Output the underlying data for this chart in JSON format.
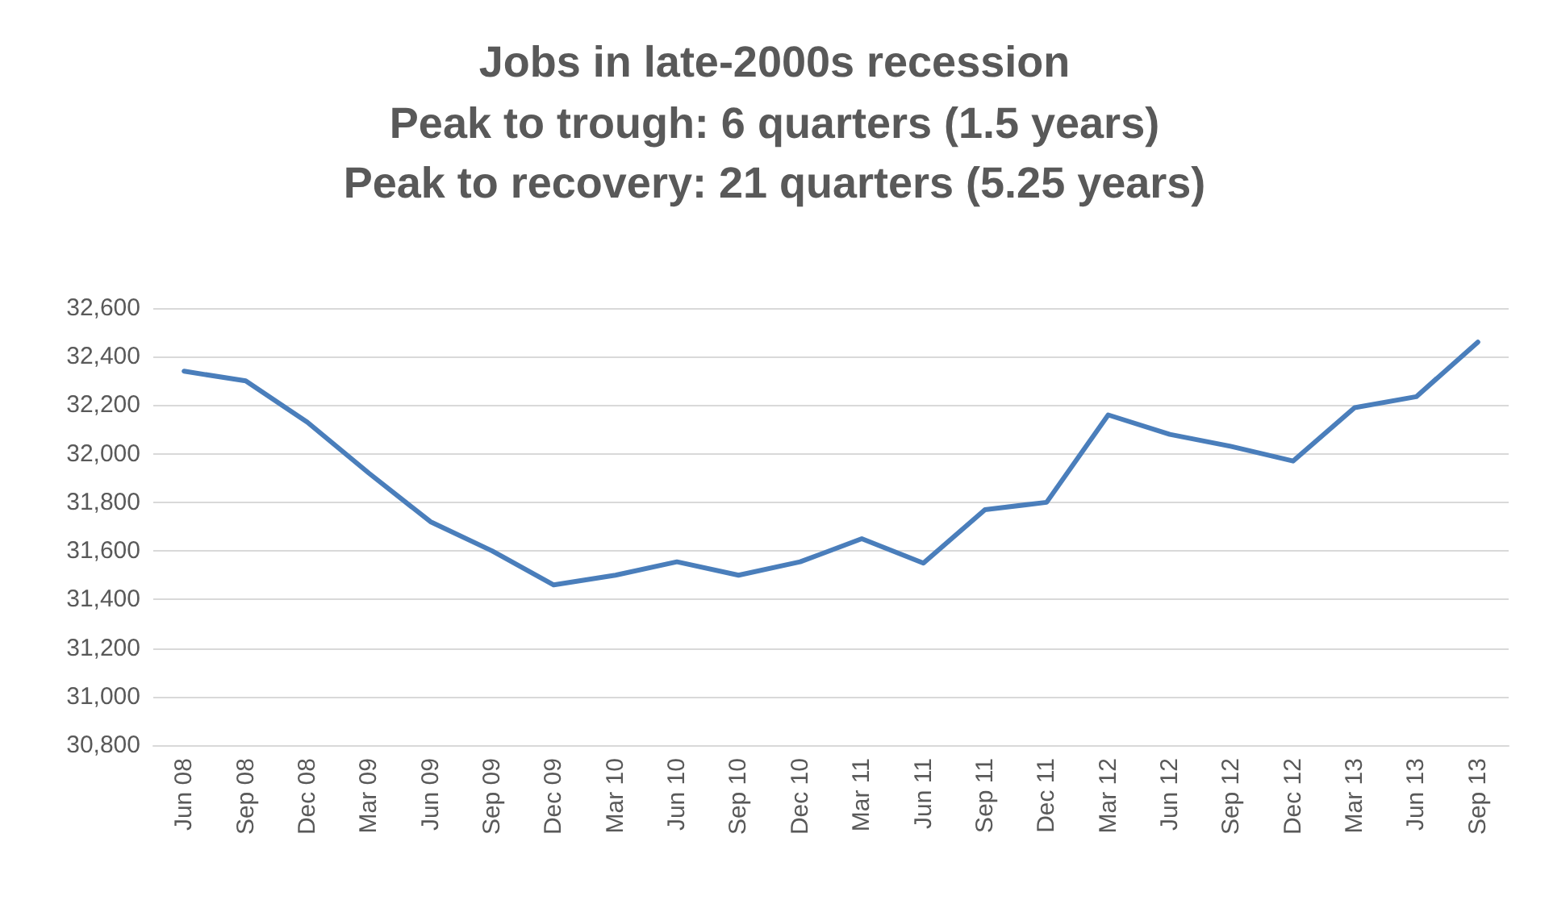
{
  "chart_data": {
    "type": "line",
    "title": "Jobs in late-2000s recession",
    "subtitle": "Peak to trough: 6 quarters (1.5 years)\nPeak to recovery: 21 quarters (5.25 years)",
    "categories": [
      "Jun 08",
      "Sep 08",
      "Dec 08",
      "Mar 09",
      "Jun 09",
      "Sep 09",
      "Dec 09",
      "Mar 10",
      "Jun 10",
      "Sep 10",
      "Dec 10",
      "Mar 11",
      "Jun 11",
      "Sep 11",
      "Dec 11",
      "Mar 12",
      "Jun 12",
      "Sep 12",
      "Dec 12",
      "Mar 13",
      "Jun 13",
      "Sep 13"
    ],
    "series": [
      {
        "color": "#4a7ebb",
        "values": [
          32340,
          32300,
          32130,
          31920,
          31720,
          31600,
          31460,
          31500,
          31555,
          31500,
          31555,
          31650,
          31550,
          31770,
          31800,
          32160,
          32080,
          32030,
          31970,
          32190,
          32235,
          32460
        ]
      }
    ],
    "ylim": [
      30800,
      32600
    ],
    "yticks": [
      {
        "value": 30800,
        "label": "30,800"
      },
      {
        "value": 31000,
        "label": "31,000"
      },
      {
        "value": 31200,
        "label": "31,200"
      },
      {
        "value": 31400,
        "label": "31,400"
      },
      {
        "value": 31600,
        "label": "31,600"
      },
      {
        "value": 31800,
        "label": "31,800"
      },
      {
        "value": 32000,
        "label": "32,000"
      },
      {
        "value": 32200,
        "label": "32,200"
      },
      {
        "value": 32400,
        "label": "32,400"
      },
      {
        "value": 32600,
        "label": "32,600"
      }
    ],
    "grid": "y",
    "marker": "none",
    "line_style": "solid"
  }
}
